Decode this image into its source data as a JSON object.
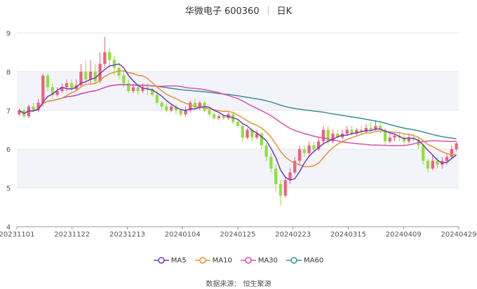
{
  "header": {
    "title": "华微电子 600360",
    "period": "日K"
  },
  "footer": {
    "source": "数据来源：  恒生聚源"
  },
  "colors": {
    "up": "#f25c7a",
    "down": "#8fe03a",
    "ma5": "#6d3bc4",
    "ma10": "#e69138",
    "ma30": "#d94fb0",
    "ma60": "#3c8f8f"
  },
  "chart_data": {
    "type": "candlestick",
    "title": "华微电子 600360",
    "y_ticks": [
      "4",
      "5",
      "6",
      "7",
      "8",
      "9"
    ],
    "ylim": [
      4,
      9
    ],
    "x_ticks": [
      "20231101",
      "20231122",
      "20231213",
      "20240104",
      "20240125",
      "20240223",
      "20240315",
      "20240409",
      "20240429"
    ],
    "legend": [
      "MA5",
      "MA10",
      "MA30",
      "MA60"
    ],
    "legend_position": "bottom",
    "grid": "horizontal bands",
    "candles": [
      [
        6.9,
        7.0,
        6.85,
        7.05
      ],
      [
        7.0,
        6.85,
        6.8,
        7.05
      ],
      [
        6.85,
        7.1,
        6.8,
        7.15
      ],
      [
        7.1,
        7.0,
        6.95,
        7.2
      ],
      [
        7.0,
        7.2,
        6.95,
        7.3
      ],
      [
        7.2,
        7.9,
        7.1,
        7.95
      ],
      [
        7.9,
        7.6,
        7.5,
        7.95
      ],
      [
        7.6,
        7.4,
        7.3,
        7.7
      ],
      [
        7.4,
        7.5,
        7.35,
        7.6
      ],
      [
        7.5,
        7.6,
        7.45,
        7.7
      ],
      [
        7.6,
        7.7,
        7.5,
        7.8
      ],
      [
        7.7,
        7.55,
        7.5,
        7.8
      ],
      [
        7.55,
        7.65,
        7.5,
        7.8
      ],
      [
        7.65,
        8.0,
        7.6,
        8.2
      ],
      [
        8.0,
        7.8,
        7.7,
        8.3
      ],
      [
        7.8,
        8.0,
        7.7,
        8.3
      ],
      [
        8.0,
        7.75,
        7.7,
        8.2
      ],
      [
        7.75,
        8.2,
        7.7,
        8.5
      ],
      [
        8.2,
        8.5,
        8.1,
        8.9
      ],
      [
        8.5,
        8.3,
        8.1,
        8.6
      ],
      [
        8.3,
        8.1,
        7.9,
        8.4
      ],
      [
        8.1,
        7.9,
        7.8,
        8.2
      ],
      [
        7.9,
        7.7,
        7.6,
        8.0
      ],
      [
        7.7,
        7.5,
        7.45,
        7.8
      ],
      [
        7.5,
        7.6,
        7.45,
        7.7
      ],
      [
        7.6,
        7.5,
        7.4,
        7.7
      ],
      [
        7.5,
        7.6,
        7.45,
        7.7
      ],
      [
        7.6,
        7.55,
        7.4,
        7.7
      ],
      [
        7.55,
        7.4,
        7.35,
        7.6
      ],
      [
        7.4,
        7.2,
        7.15,
        7.5
      ],
      [
        7.2,
        7.1,
        7.0,
        7.25
      ],
      [
        7.1,
        7.0,
        6.95,
        7.2
      ],
      [
        7.0,
        7.1,
        6.95,
        7.15
      ],
      [
        7.1,
        7.0,
        6.9,
        7.15
      ],
      [
        7.0,
        6.9,
        6.85,
        7.05
      ],
      [
        6.9,
        7.0,
        6.85,
        7.1
      ],
      [
        7.0,
        7.2,
        6.95,
        7.25
      ],
      [
        7.2,
        7.1,
        7.0,
        7.3
      ],
      [
        7.1,
        7.2,
        7.0,
        7.25
      ],
      [
        7.2,
        7.0,
        6.95,
        7.25
      ],
      [
        7.0,
        6.9,
        6.85,
        7.05
      ],
      [
        6.9,
        6.8,
        6.75,
        6.95
      ],
      [
        6.8,
        6.85,
        6.75,
        6.9
      ],
      [
        6.85,
        6.8,
        6.75,
        6.9
      ],
      [
        6.8,
        6.9,
        6.75,
        6.95
      ],
      [
        6.9,
        6.7,
        6.65,
        6.95
      ],
      [
        6.7,
        6.6,
        6.55,
        6.75
      ],
      [
        6.6,
        6.3,
        6.2,
        6.65
      ],
      [
        6.3,
        6.5,
        6.25,
        6.55
      ],
      [
        6.5,
        6.3,
        6.2,
        6.55
      ],
      [
        6.3,
        6.4,
        6.25,
        6.5
      ],
      [
        6.4,
        6.1,
        6.0,
        6.45
      ],
      [
        6.1,
        5.8,
        5.7,
        6.15
      ],
      [
        5.8,
        5.5,
        5.4,
        5.9
      ],
      [
        5.5,
        5.1,
        4.9,
        5.6
      ],
      [
        5.1,
        4.8,
        4.55,
        5.2
      ],
      [
        4.8,
        5.2,
        4.75,
        5.3
      ],
      [
        5.2,
        5.4,
        5.1,
        5.5
      ],
      [
        5.4,
        5.7,
        5.35,
        5.8
      ],
      [
        5.7,
        6.0,
        5.6,
        6.1
      ],
      [
        6.0,
        5.9,
        5.8,
        6.1
      ],
      [
        5.9,
        6.1,
        5.85,
        6.2
      ],
      [
        6.1,
        6.0,
        5.9,
        6.2
      ],
      [
        6.0,
        6.2,
        5.95,
        6.3
      ],
      [
        6.2,
        6.5,
        6.1,
        6.6
      ],
      [
        6.5,
        6.2,
        6.1,
        6.6
      ],
      [
        6.2,
        6.4,
        6.15,
        6.5
      ],
      [
        6.4,
        6.3,
        6.25,
        6.5
      ],
      [
        6.3,
        6.4,
        6.25,
        6.5
      ],
      [
        6.4,
        6.5,
        6.35,
        6.6
      ],
      [
        6.5,
        6.4,
        6.35,
        6.6
      ],
      [
        6.4,
        6.5,
        6.35,
        6.55
      ],
      [
        6.5,
        6.45,
        6.4,
        6.6
      ],
      [
        6.45,
        6.55,
        6.4,
        6.65
      ],
      [
        6.55,
        6.5,
        6.45,
        6.7
      ],
      [
        6.5,
        6.6,
        6.45,
        6.75
      ],
      [
        6.6,
        6.5,
        6.4,
        6.7
      ],
      [
        6.5,
        6.2,
        6.1,
        6.55
      ],
      [
        6.2,
        6.3,
        6.15,
        6.4
      ],
      [
        6.3,
        6.35,
        6.2,
        6.4
      ],
      [
        6.35,
        6.3,
        6.2,
        6.45
      ],
      [
        6.3,
        6.2,
        6.1,
        6.4
      ],
      [
        6.2,
        6.3,
        6.15,
        6.4
      ],
      [
        6.3,
        6.25,
        6.2,
        6.4
      ],
      [
        6.25,
        6.1,
        6.0,
        6.3
      ],
      [
        6.1,
        5.7,
        5.6,
        6.15
      ],
      [
        5.7,
        5.5,
        5.4,
        5.75
      ],
      [
        5.5,
        5.7,
        5.45,
        5.85
      ],
      [
        5.7,
        5.6,
        5.5,
        5.8
      ],
      [
        5.6,
        5.7,
        5.5,
        5.8
      ],
      [
        5.7,
        5.8,
        5.6,
        5.9
      ],
      [
        5.8,
        6.0,
        5.75,
        6.1
      ],
      [
        6.0,
        6.15,
        5.95,
        6.2
      ]
    ]
  }
}
